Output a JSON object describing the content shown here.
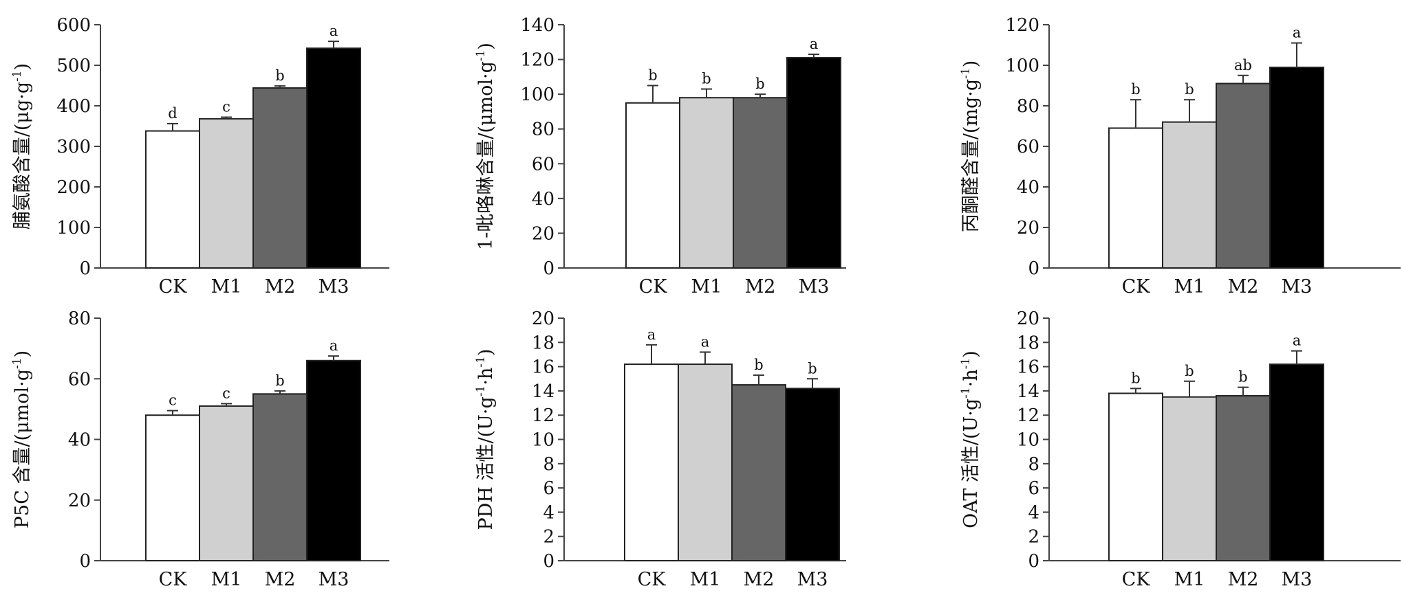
{
  "colors": [
    "#ffffff",
    "#d0d0d0",
    "#666666",
    "#000000"
  ],
  "chart_data": [
    {
      "type": "bar",
      "ylabel_main": "脯氨酸含量/(",
      "ylabel_unit": "μg·g",
      "ylabel_sup": "-1",
      "ylabel_tail": ")",
      "categories": [
        "CK",
        "M1",
        "M2",
        "M3"
      ],
      "values": [
        338,
        368,
        444,
        542
      ],
      "errors": [
        18,
        4,
        5,
        17
      ],
      "significance": [
        "d",
        "c",
        "b",
        "a"
      ],
      "ylim": [
        0,
        600
      ],
      "yticks": [
        "0",
        "100",
        "200",
        "300",
        "400",
        "500",
        "600"
      ]
    },
    {
      "type": "bar",
      "ylabel_main": "1-吡咯啉含量/(",
      "ylabel_unit": "μmol·g",
      "ylabel_sup": "-1",
      "ylabel_tail": ")",
      "categories": [
        "CK",
        "M1",
        "M2",
        "M3"
      ],
      "values": [
        95,
        98,
        98,
        121
      ],
      "errors": [
        10,
        5,
        2,
        2
      ],
      "significance": [
        "b",
        "b",
        "b",
        "a"
      ],
      "ylim": [
        0,
        140
      ],
      "yticks": [
        "0",
        "20",
        "40",
        "60",
        "80",
        "100",
        "120",
        "140"
      ]
    },
    {
      "type": "bar",
      "ylabel_main": "丙酮醛含量/(",
      "ylabel_unit": "mg·g",
      "ylabel_sup": "-1",
      "ylabel_tail": ")",
      "categories": [
        "CK",
        "M1",
        "M2",
        "M3"
      ],
      "values": [
        69,
        72,
        91,
        99
      ],
      "errors": [
        14,
        11,
        4,
        12
      ],
      "significance": [
        "b",
        "b",
        "ab",
        "a"
      ],
      "ylim": [
        0,
        120
      ],
      "yticks": [
        "0",
        "20",
        "40",
        "60",
        "80",
        "100",
        "120"
      ]
    },
    {
      "type": "bar",
      "ylabel_main": "P5C 含量/(",
      "ylabel_unit": "μmol·g",
      "ylabel_sup": "-1",
      "ylabel_tail": ")",
      "categories": [
        "CK",
        "M1",
        "M2",
        "M3"
      ],
      "values": [
        48,
        51,
        55,
        66
      ],
      "errors": [
        1.5,
        0.8,
        1,
        1.5
      ],
      "significance": [
        "c",
        "c",
        "b",
        "a"
      ],
      "ylim": [
        0,
        80
      ],
      "yticks": [
        "0",
        "20",
        "40",
        "60",
        "80"
      ]
    },
    {
      "type": "bar",
      "ylabel_main": "PDH 活性/(",
      "ylabel_unit": "U·g",
      "ylabel_sup": "-1",
      "ylabel_unit2": "·h",
      "ylabel_sup2": "-1",
      "ylabel_tail": ")",
      "categories": [
        "CK",
        "M1",
        "M2",
        "M3"
      ],
      "values": [
        16.2,
        16.2,
        14.5,
        14.2
      ],
      "errors": [
        1.6,
        1.0,
        0.8,
        0.8
      ],
      "significance": [
        "a",
        "a",
        "b",
        "b"
      ],
      "ylim": [
        0,
        20
      ],
      "yticks": [
        "0",
        "2",
        "4",
        "6",
        "8",
        "10",
        "12",
        "14",
        "16",
        "18",
        "20"
      ]
    },
    {
      "type": "bar",
      "ylabel_main": "OAT 活性/(",
      "ylabel_unit": "U·g",
      "ylabel_sup": "-1",
      "ylabel_unit2": "·h",
      "ylabel_sup2": "-1",
      "ylabel_tail": ")",
      "categories": [
        "CK",
        "M1",
        "M2",
        "M3"
      ],
      "values": [
        13.8,
        13.5,
        13.6,
        16.2
      ],
      "errors": [
        0.4,
        1.3,
        0.7,
        1.1
      ],
      "significance": [
        "b",
        "b",
        "b",
        "a"
      ],
      "ylim": [
        0,
        20
      ],
      "yticks": [
        "0",
        "2",
        "4",
        "6",
        "8",
        "10",
        "12",
        "14",
        "16",
        "18",
        "20"
      ]
    }
  ]
}
